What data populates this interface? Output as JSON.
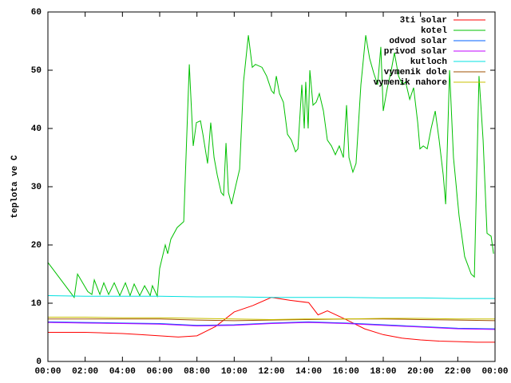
{
  "chart_data": {
    "type": "line",
    "ylabel": "teplota ve C",
    "xlim": [
      0,
      24
    ],
    "ylim": [
      0,
      60
    ],
    "yticks": [
      0,
      10,
      20,
      30,
      40,
      50,
      60
    ],
    "xticks": [
      {
        "value": 0,
        "label": "00:00"
      },
      {
        "value": 2,
        "label": "02:00"
      },
      {
        "value": 4,
        "label": "04:00"
      },
      {
        "value": 6,
        "label": "06:00"
      },
      {
        "value": 8,
        "label": "08:00"
      },
      {
        "value": 10,
        "label": "10:00"
      },
      {
        "value": 12,
        "label": "12:00"
      },
      {
        "value": 14,
        "label": "14:00"
      },
      {
        "value": 16,
        "label": "16:00"
      },
      {
        "value": 18,
        "label": "18:00"
      },
      {
        "value": 20,
        "label": "20:00"
      },
      {
        "value": 22,
        "label": "22:00"
      },
      {
        "value": 24,
        "label": "00:00"
      }
    ],
    "legend": "top-right",
    "series": [
      {
        "name": "3ti solar",
        "color": "#ff0000",
        "x": [
          0,
          1,
          2,
          3,
          4,
          5,
          6,
          7,
          8,
          9,
          10,
          11,
          12,
          13,
          14,
          14.5,
          15,
          16,
          17,
          18,
          19,
          20,
          21,
          22,
          23,
          24
        ],
        "values": [
          5,
          5,
          5,
          4.9,
          4.8,
          4.6,
          4.4,
          4.2,
          4.4,
          6,
          8.5,
          9.6,
          11,
          10.5,
          10.1,
          8,
          8.7,
          7.2,
          5.6,
          4.6,
          4,
          3.7,
          3.5,
          3.4,
          3.3,
          3.3
        ]
      },
      {
        "name": "kotel",
        "color": "#00c000",
        "x": [
          0,
          1.41,
          1.59,
          2.14,
          2.36,
          2.49,
          2.79,
          3,
          3.26,
          3.56,
          3.86,
          4.16,
          4.41,
          4.63,
          4.93,
          5.19,
          5.49,
          5.61,
          5.87,
          6,
          6.3,
          6.43,
          6.6,
          6.94,
          7.29,
          7.59,
          7.8,
          7.97,
          8.19,
          8.32,
          8.57,
          8.74,
          8.92,
          9.09,
          9.3,
          9.43,
          9.56,
          9.69,
          9.86,
          10.07,
          10.29,
          10.5,
          10.76,
          10.97,
          11.14,
          11.49,
          11.74,
          12,
          12.13,
          12.26,
          12.43,
          12.64,
          12.86,
          13.07,
          13.29,
          13.42,
          13.63,
          13.76,
          13.84,
          13.97,
          14.06,
          14.23,
          14.4,
          14.57,
          14.79,
          15,
          15.22,
          15.43,
          15.64,
          15.86,
          16.03,
          16.16,
          16.37,
          16.54,
          16.8,
          17.06,
          17.27,
          17.49,
          17.7,
          17.87,
          18,
          18.22,
          18.43,
          18.6,
          18.82,
          19.03,
          19.2,
          19.42,
          19.63,
          19.85,
          19.97,
          20.15,
          20.36,
          20.57,
          20.79,
          21,
          21.22,
          21.35,
          21.56,
          21.77,
          22.07,
          22.37,
          22.72,
          22.89,
          23.14,
          23.36,
          23.57,
          23.79,
          23.92
        ],
        "values": [
          17,
          11,
          15,
          12,
          11.5,
          14,
          11.5,
          13.5,
          11.5,
          13.5,
          11.3,
          13.5,
          11.3,
          13.3,
          11.3,
          13,
          11.3,
          13,
          11.2,
          16,
          20,
          18.5,
          21,
          23,
          24,
          51,
          37,
          41,
          41.3,
          39,
          34,
          41,
          35,
          32,
          29,
          28.5,
          37.5,
          29,
          27,
          30,
          33,
          48,
          56,
          50.5,
          51,
          50.5,
          49,
          46.5,
          46,
          49,
          46,
          44.5,
          39,
          38,
          36,
          36.5,
          47.5,
          40,
          48,
          40,
          50,
          44,
          44.5,
          46,
          43,
          38,
          37,
          35.5,
          37,
          35,
          44,
          35,
          32.5,
          34,
          47.5,
          56,
          52,
          49.5,
          47.5,
          54,
          43,
          47,
          50,
          53,
          49,
          47.5,
          48,
          45,
          47,
          41,
          36.5,
          37,
          36.5,
          40,
          43,
          38,
          32,
          27,
          50,
          35,
          25,
          18,
          15,
          14.5,
          49,
          38,
          22,
          21.5,
          18.5
        ]
      },
      {
        "name": "odvod solar",
        "color": "#0060ff",
        "x": [
          0,
          2,
          4,
          6,
          8,
          10,
          12,
          14,
          16,
          18,
          20,
          22,
          24
        ],
        "values": [
          6.8,
          6.7,
          6.6,
          6.5,
          6.2,
          6.3,
          6.6,
          6.8,
          6.6,
          6.3,
          6,
          5.7,
          5.6
        ]
      },
      {
        "name": "privod solar",
        "color": "#c000ff",
        "x": [
          0,
          2,
          4,
          6,
          8,
          10,
          12,
          14,
          16,
          18,
          20,
          22,
          24
        ],
        "values": [
          6.7,
          6.6,
          6.5,
          6.4,
          6.1,
          6.2,
          6.5,
          6.7,
          6.5,
          6.2,
          5.9,
          5.6,
          5.5
        ]
      },
      {
        "name": "kutloch",
        "color": "#00e0e0",
        "x": [
          0,
          2,
          4,
          6,
          8,
          10,
          12,
          14,
          16,
          18,
          20,
          22,
          24
        ],
        "values": [
          11.3,
          11.2,
          11.2,
          11.2,
          11.1,
          11.1,
          11,
          11,
          11,
          10.9,
          10.9,
          10.8,
          10.8
        ]
      },
      {
        "name": "vymenik dole",
        "color": "#a05000",
        "x": [
          0,
          2,
          4,
          6,
          8,
          10,
          12,
          14,
          16,
          18,
          20,
          22,
          24
        ],
        "values": [
          7.3,
          7.3,
          7.3,
          7.3,
          7.1,
          7,
          7.1,
          7.2,
          7.3,
          7.3,
          7.2,
          7.1,
          7
        ]
      },
      {
        "name": "vymenik nahore",
        "color": "#c8c000",
        "x": [
          0,
          2,
          4,
          6,
          8,
          10,
          12,
          14,
          16,
          18,
          20,
          22,
          24
        ],
        "values": [
          7.6,
          7.6,
          7.5,
          7.5,
          7.4,
          7.3,
          7.2,
          7.3,
          7.3,
          7.4,
          7.4,
          7.3,
          7.3
        ]
      }
    ]
  }
}
